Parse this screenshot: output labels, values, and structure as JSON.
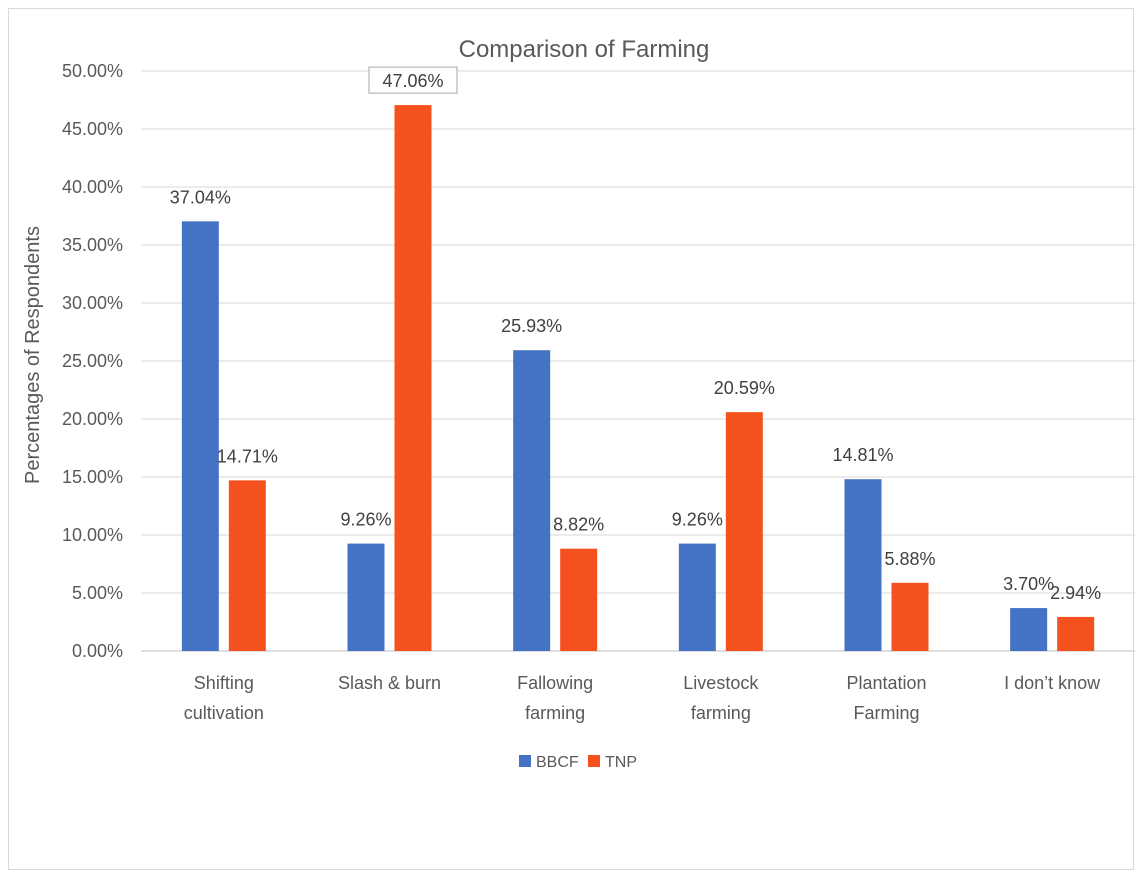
{
  "chart_data": {
    "type": "bar",
    "title": "Comparison of Farming",
    "xlabel": "",
    "ylabel": "Percentages of Respondents",
    "ylim": [
      0,
      50
    ],
    "yticks": [
      "0.00%",
      "5.00%",
      "10.00%",
      "15.00%",
      "20.00%",
      "25.00%",
      "30.00%",
      "35.00%",
      "40.00%",
      "45.00%",
      "50.00%"
    ],
    "grid": true,
    "legend_position": "bottom",
    "categories": [
      [
        "Shifting",
        "cultivation"
      ],
      [
        "Slash & burn"
      ],
      [
        "Fallowing",
        "farming"
      ],
      [
        "Livestock",
        "farming"
      ],
      [
        "Plantation",
        "Farming"
      ],
      [
        "I don’t know"
      ]
    ],
    "series": [
      {
        "name": "BBCF",
        "color": "#4472C4",
        "values": [
          37.04,
          9.26,
          25.93,
          9.26,
          14.81,
          3.7
        ],
        "labels": [
          "37.04%",
          "9.26%",
          "25.93%",
          "9.26%",
          "14.81%",
          "3.70%"
        ]
      },
      {
        "name": "TNP",
        "color": "#F4511E",
        "values": [
          14.71,
          47.06,
          8.82,
          20.59,
          5.88,
          2.94
        ],
        "labels": [
          "14.71%",
          "47.06%",
          "8.82%",
          "20.59%",
          "5.88%",
          "2.94%"
        ]
      }
    ],
    "boxed_label": {
      "series": 1,
      "index": 1
    }
  }
}
